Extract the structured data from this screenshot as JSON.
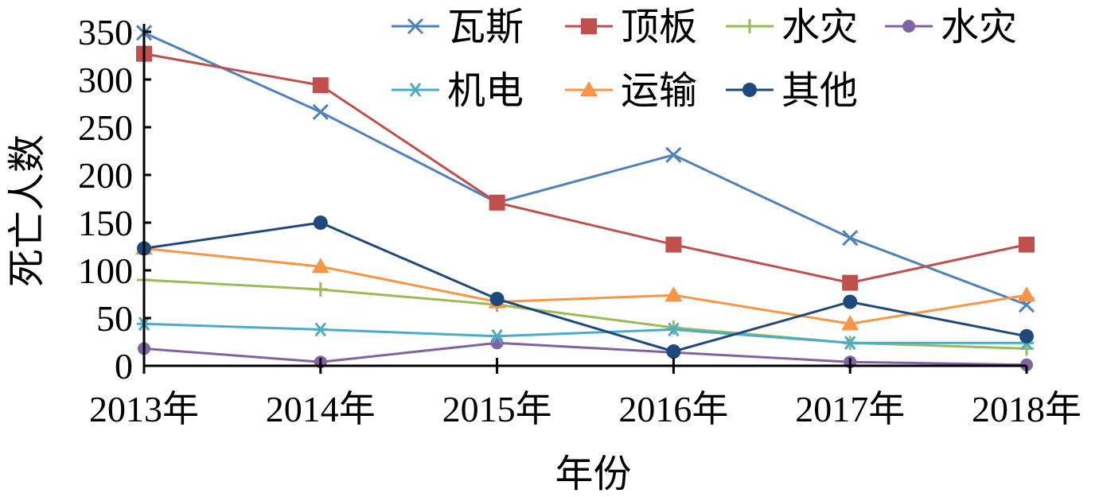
{
  "chart_data": {
    "type": "line",
    "xlabel": "年份",
    "ylabel": "死亡人数",
    "categories": [
      "2013年",
      "2014年",
      "2015年",
      "2016年",
      "2017年",
      "2018年"
    ],
    "ylim": [
      0,
      350
    ],
    "yticks": [
      0,
      50,
      100,
      150,
      200,
      250,
      300,
      350
    ],
    "grid": false,
    "legend_position": "top",
    "series": [
      {
        "name": "瓦斯",
        "color": "#4f81bd",
        "marker": "x",
        "values": [
          349,
          266,
          171,
          221,
          134,
          64
        ]
      },
      {
        "name": "顶板",
        "color": "#c0504d",
        "marker": "square",
        "values": [
          327,
          294,
          171,
          127,
          87,
          127
        ]
      },
      {
        "name": "水灾",
        "color": "#9bbb59",
        "marker": "plus",
        "values": [
          90,
          80,
          64,
          40,
          24,
          18
        ]
      },
      {
        "name": "水灾",
        "color": "#8064a2",
        "marker": "circle",
        "values": [
          18,
          4,
          24,
          14,
          4,
          1
        ]
      },
      {
        "name": "机电",
        "color": "#4bacc6",
        "marker": "asterisk",
        "values": [
          44,
          38,
          31,
          38,
          24,
          24
        ]
      },
      {
        "name": "运输",
        "color": "#f79646",
        "marker": "triangle",
        "values": [
          123,
          104,
          67,
          74,
          44,
          74
        ]
      },
      {
        "name": "其他",
        "color": "#1f497d",
        "marker": "dot",
        "values": [
          123,
          150,
          70,
          15,
          67,
          31
        ]
      }
    ]
  }
}
